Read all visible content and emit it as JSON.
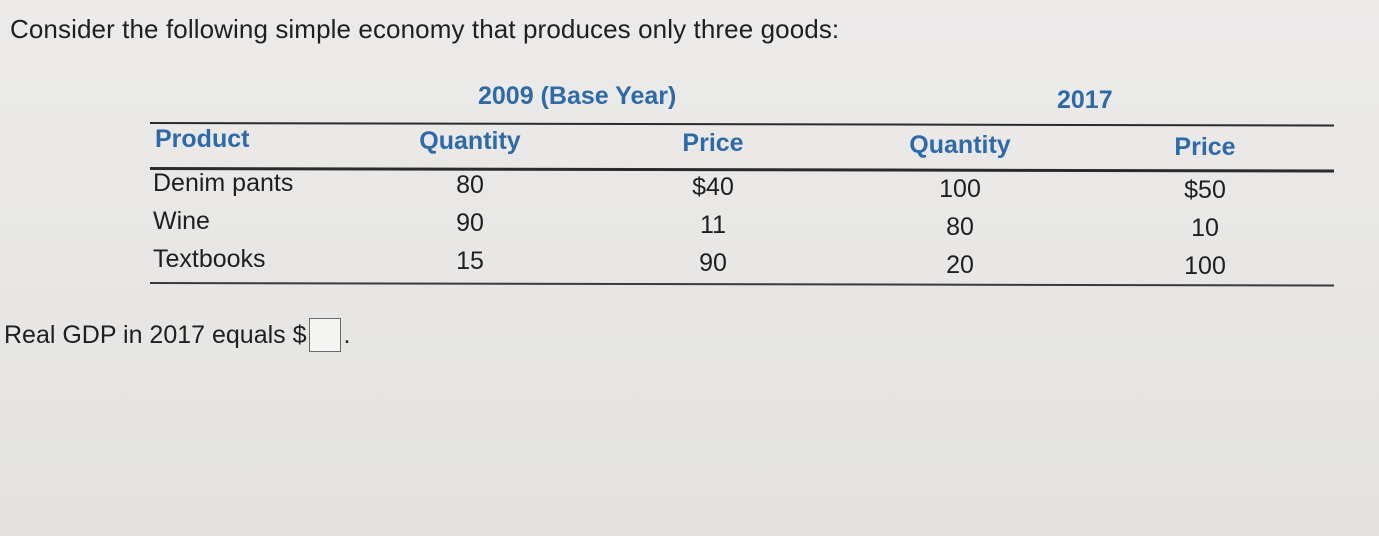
{
  "intro": "Consider the following simple economy that produces only three goods:",
  "groups": {
    "base_year": "2009 (Base Year)",
    "current_year": "2017"
  },
  "columns": {
    "product": "Product",
    "q2009": "Quantity",
    "p2009": "Price",
    "q2017": "Quantity",
    "p2017": "Price"
  },
  "rows": [
    {
      "product": "Denim pants",
      "q2009": "80",
      "p2009": "$40",
      "q2017": "100",
      "p2017": "$50"
    },
    {
      "product": "Wine",
      "q2009": "90",
      "p2009": "11",
      "q2017": "80",
      "p2017": "10"
    },
    {
      "product": "Textbooks",
      "q2009": "15",
      "p2009": "90",
      "q2017": "20",
      "p2017": "100"
    }
  ],
  "question": {
    "prefix": "Real GDP in 2017 equals $",
    "answer_value": "",
    "suffix": "."
  }
}
